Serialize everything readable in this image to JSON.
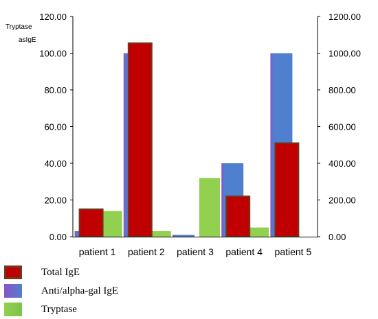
{
  "chart_data": {
    "type": "bar",
    "left_axis_labels": [
      "Tryptase",
      "asIgE"
    ],
    "categories": [
      "patient 1",
      "patient 2",
      "patient 3",
      "patient 4",
      "patient 5"
    ],
    "left_axis": {
      "ylim": [
        0,
        120
      ],
      "ticks": [
        "0.00",
        "20.00",
        "40.00",
        "60.00",
        "80.00",
        "100.00",
        "120.00"
      ]
    },
    "right_axis": {
      "ylim": [
        0,
        1200
      ],
      "ticks": [
        "0.00",
        "200.00",
        "400.00",
        "600.00",
        "800.00",
        "1000.00",
        "1200.00"
      ]
    },
    "series": [
      {
        "name": "Anti/alpha-gal IgE",
        "axis": "left",
        "values": [
          3,
          100,
          1,
          40,
          100
        ],
        "color": "#4f7fcf"
      },
      {
        "name": "Total IgE",
        "axis": "right",
        "values": [
          150,
          1055,
          0,
          220,
          510
        ],
        "color": "#c00000"
      },
      {
        "name": "Tryptase",
        "axis": "left",
        "values": [
          14,
          3,
          32,
          5,
          0
        ],
        "color": "#92d050"
      }
    ],
    "grid": false,
    "legend": "bottom-left"
  },
  "legend": {
    "items": [
      {
        "label": "Total IgE",
        "key": "total"
      },
      {
        "label": "Anti/alpha-gal IgE",
        "key": "antigal"
      },
      {
        "label": "Tryptase",
        "key": "tryptase"
      }
    ]
  }
}
